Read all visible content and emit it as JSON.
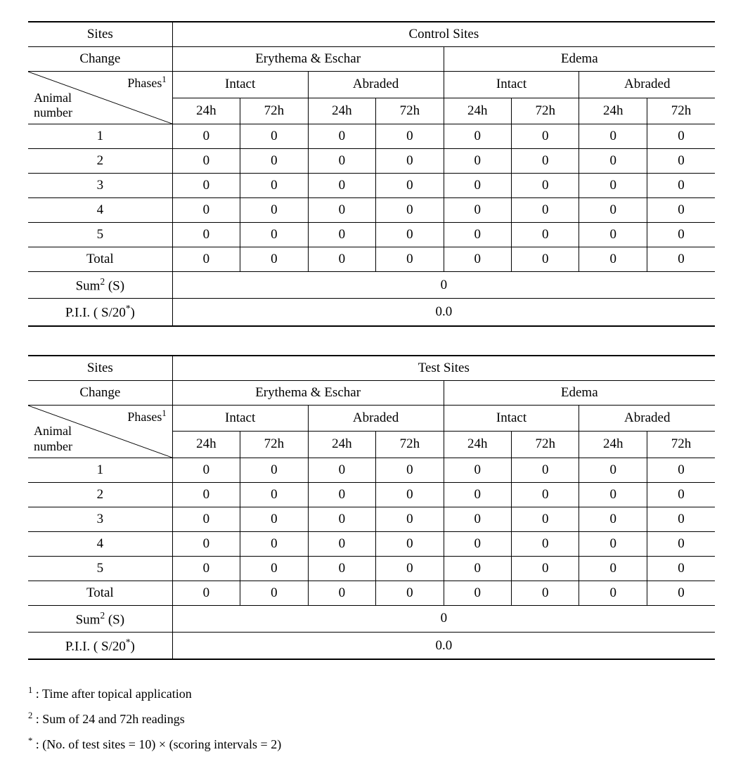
{
  "labels": {
    "sites": "Sites",
    "change": "Change",
    "phases": "Phases",
    "phases_sup": "1",
    "animal_number_l1": "Animal",
    "animal_number_l2": "number",
    "erythema": "Erythema & Eschar",
    "edema": "Edema",
    "intact": "Intact",
    "abraded": "Abraded",
    "h24": "24h",
    "h72": "72h",
    "total": "Total",
    "sum": "Sum",
    "sum_sup": "2",
    "sum_suffix": " (S)",
    "pii": "P.I.I.  ( S/20",
    "pii_sup": "*",
    "pii_suffix": ")"
  },
  "tables": [
    {
      "site_header": "Control Sites",
      "rows": [
        {
          "label": "1",
          "vals": [
            "0",
            "0",
            "0",
            "0",
            "0",
            "0",
            "0",
            "0"
          ]
        },
        {
          "label": "2",
          "vals": [
            "0",
            "0",
            "0",
            "0",
            "0",
            "0",
            "0",
            "0"
          ]
        },
        {
          "label": "3",
          "vals": [
            "0",
            "0",
            "0",
            "0",
            "0",
            "0",
            "0",
            "0"
          ]
        },
        {
          "label": "4",
          "vals": [
            "0",
            "0",
            "0",
            "0",
            "0",
            "0",
            "0",
            "0"
          ]
        },
        {
          "label": "5",
          "vals": [
            "0",
            "0",
            "0",
            "0",
            "0",
            "0",
            "0",
            "0"
          ]
        },
        {
          "label": "Total",
          "vals": [
            "0",
            "0",
            "0",
            "0",
            "0",
            "0",
            "0",
            "0"
          ]
        }
      ],
      "sum": "0",
      "pii": "0.0"
    },
    {
      "site_header": "Test Sites",
      "rows": [
        {
          "label": "1",
          "vals": [
            "0",
            "0",
            "0",
            "0",
            "0",
            "0",
            "0",
            "0"
          ]
        },
        {
          "label": "2",
          "vals": [
            "0",
            "0",
            "0",
            "0",
            "0",
            "0",
            "0",
            "0"
          ]
        },
        {
          "label": "3",
          "vals": [
            "0",
            "0",
            "0",
            "0",
            "0",
            "0",
            "0",
            "0"
          ]
        },
        {
          "label": "4",
          "vals": [
            "0",
            "0",
            "0",
            "0",
            "0",
            "0",
            "0",
            "0"
          ]
        },
        {
          "label": "5",
          "vals": [
            "0",
            "0",
            "0",
            "0",
            "0",
            "0",
            "0",
            "0"
          ]
        },
        {
          "label": "Total",
          "vals": [
            "0",
            "0",
            "0",
            "0",
            "0",
            "0",
            "0",
            "0"
          ]
        }
      ],
      "sum": "0",
      "pii": "0.0"
    }
  ],
  "footnotes": [
    {
      "mark": "1",
      "text": " : Time after topical application"
    },
    {
      "mark": "2",
      "text": " : Sum of 24 and 72h readings"
    },
    {
      "mark": "*",
      "text": " : (No. of test sites = 10) × (scoring intervals = 2)"
    }
  ]
}
